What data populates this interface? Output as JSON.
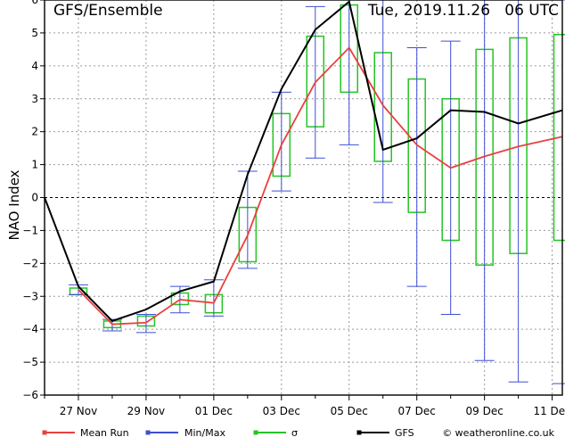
{
  "header": {
    "title": "GFS/Ensemble",
    "timestamp": "Tue, 2019.11.26   06 UTC"
  },
  "legend": {
    "mean_label": "Mean Run",
    "minmax_label": "Min/Max",
    "sigma_label": "σ",
    "gfs_label": "GFS",
    "credit": "© weatheronline.co.uk"
  },
  "colors": {
    "mean": "#e8413f",
    "minmax": "#3e4fd4",
    "sigma": "#25c425",
    "gfs": "#000000",
    "grid": "#9a9a9a"
  },
  "chart_data": {
    "type": "line",
    "title": "GFS/Ensemble",
    "ylabel": "NAO Index",
    "xlabel": "",
    "ylim": [
      -6,
      6
    ],
    "yticks": [
      -6,
      -5,
      -4,
      -3,
      -2,
      -1,
      0,
      1,
      2,
      3,
      4,
      5,
      6
    ],
    "grid": true,
    "xticks": [
      {
        "x": 1,
        "label": "27 Nov"
      },
      {
        "x": 3,
        "label": "29 Nov"
      },
      {
        "x": 5,
        "label": "01 Dec"
      },
      {
        "x": 7,
        "label": "03 Dec"
      },
      {
        "x": 9,
        "label": "05 Dec"
      },
      {
        "x": 11,
        "label": "07 Dec"
      },
      {
        "x": 13,
        "label": "09 Dec"
      },
      {
        "x": 15,
        "label": "11 Dec"
      }
    ],
    "xlim": [
      0,
      15.3
    ],
    "gfs": {
      "x": [
        0,
        1,
        2,
        3,
        4,
        5,
        6,
        7,
        8,
        9,
        10,
        11,
        12,
        13,
        14,
        15.3
      ],
      "y": [
        0,
        -2.7,
        -3.75,
        -3.4,
        -2.85,
        -2.55,
        0.7,
        3.3,
        5.1,
        5.95,
        1.45,
        1.8,
        2.65,
        2.6,
        2.25,
        2.65
      ]
    },
    "mean_run": {
      "x": [
        1,
        2,
        3,
        4,
        5,
        6,
        7,
        8,
        9,
        10,
        11,
        12,
        13,
        14,
        15.3
      ],
      "y": [
        -2.8,
        -3.85,
        -3.8,
        -3.1,
        -3.2,
        -1.15,
        1.6,
        3.5,
        4.55,
        2.8,
        1.6,
        0.9,
        1.25,
        1.55,
        1.85
      ]
    },
    "min_max": {
      "x": [
        1,
        2,
        3,
        4,
        5,
        6,
        7,
        8,
        9,
        10,
        11,
        12,
        13,
        14,
        15.3
      ],
      "min": [
        -2.95,
        -4.05,
        -4.1,
        -3.5,
        -3.6,
        -2.15,
        0.2,
        1.2,
        1.6,
        -0.15,
        -2.7,
        -3.55,
        -4.95,
        -5.6,
        -5.65
      ],
      "max": [
        -2.65,
        -3.7,
        -3.55,
        -2.7,
        -2.5,
        0.8,
        3.2,
        5.8,
        6.0,
        6.0,
        4.55,
        4.75,
        6.0,
        6.0,
        6.0
      ]
    },
    "sigma": {
      "x": [
        1,
        2,
        3,
        4,
        5,
        6,
        7,
        8,
        9,
        10,
        11,
        12,
        13,
        14,
        15.3
      ],
      "low": [
        -2.95,
        -3.95,
        -3.9,
        -3.25,
        -3.5,
        -1.95,
        0.65,
        2.15,
        3.2,
        1.1,
        -0.45,
        -1.3,
        -2.05,
        -1.7,
        -1.3
      ],
      "high": [
        -2.75,
        -3.75,
        -3.6,
        -2.9,
        -2.95,
        -0.3,
        2.55,
        4.9,
        5.85,
        4.4,
        3.6,
        3.0,
        4.5,
        4.85,
        4.95
      ]
    }
  }
}
